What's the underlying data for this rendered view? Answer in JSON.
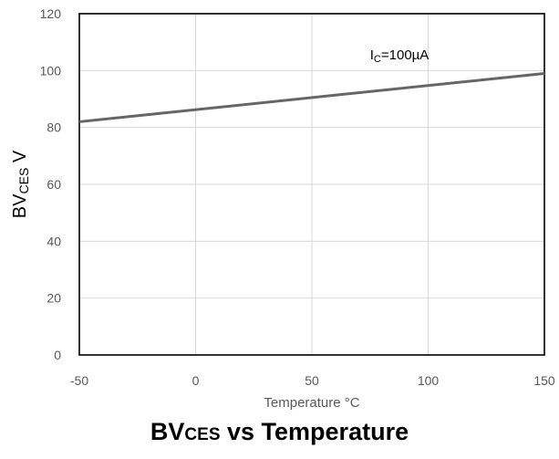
{
  "chart_data": {
    "type": "line",
    "title": {
      "main": "BV",
      "sub": "CES",
      "rest": " vs Temperature"
    },
    "xlabel": "Temperature °C",
    "ylabel": {
      "main": "BV",
      "sub": "CES",
      "rest": " V"
    },
    "xlim": [
      -50,
      150
    ],
    "ylim": [
      0,
      120
    ],
    "xticks": [
      -50,
      0,
      50,
      100,
      150
    ],
    "yticks": [
      0,
      20,
      40,
      60,
      80,
      100,
      120
    ],
    "grid": true,
    "series": [
      {
        "x": [
          -50,
          150
        ],
        "y": [
          82,
          99
        ],
        "color": "#666666"
      }
    ],
    "annotation": {
      "main": "I",
      "sub": "C",
      "rest": "=100µA",
      "x": 75,
      "y": 104
    }
  }
}
